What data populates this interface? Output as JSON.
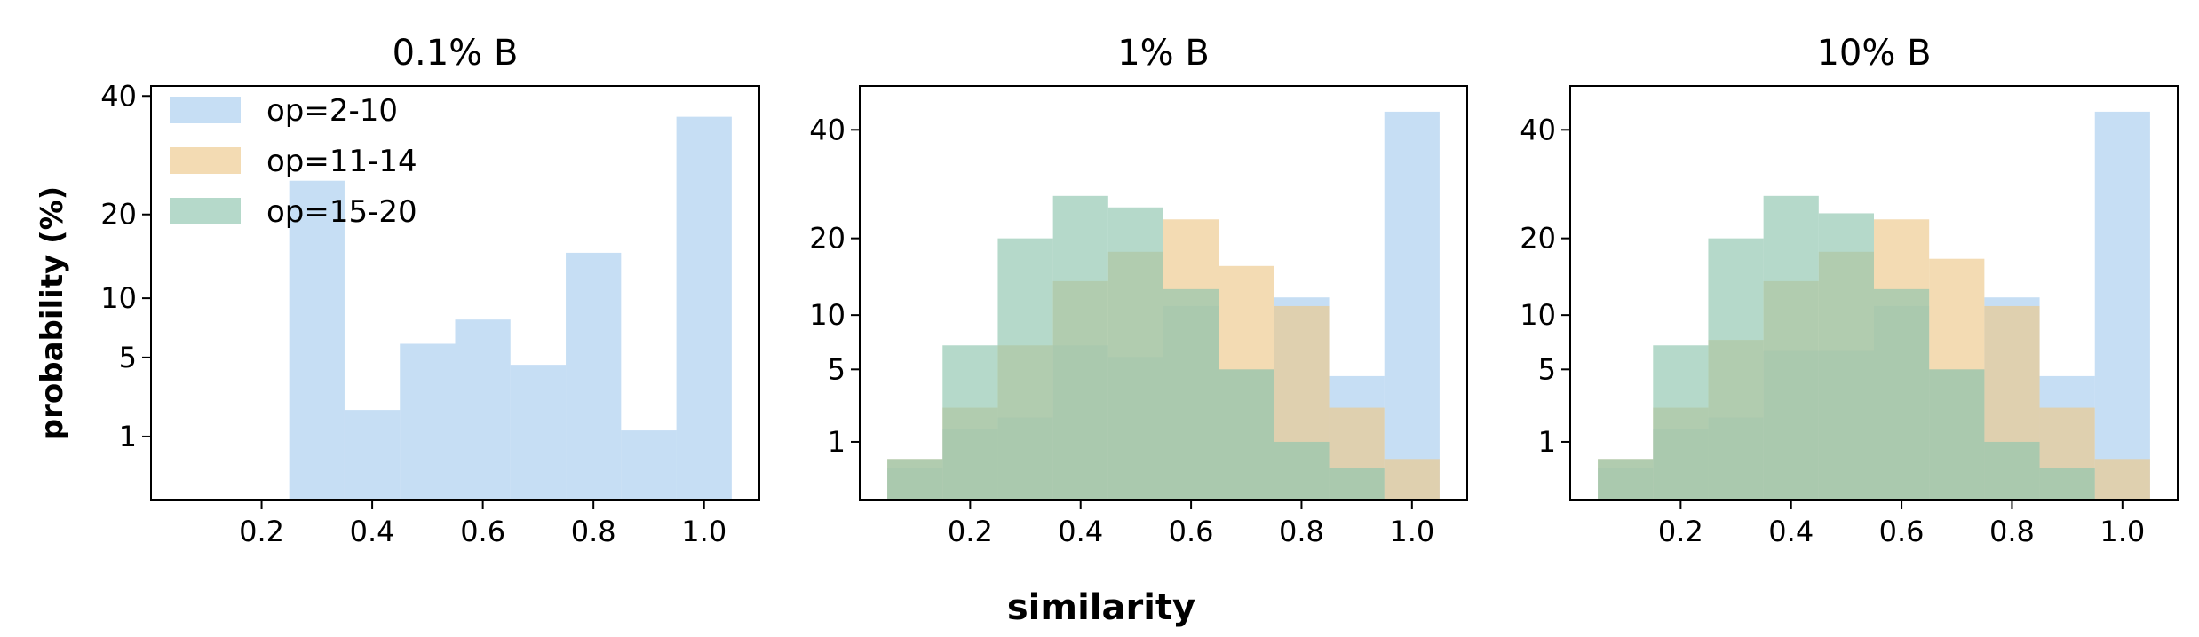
{
  "figure": {
    "ylabel": "probability (%)",
    "xlabel": "similarity",
    "legend": [
      {
        "label": "op=2-10",
        "color": "#a8cdee"
      },
      {
        "label": "op=11-14",
        "color": "#ecc78a"
      },
      {
        "label": "op=15-20",
        "color": "#8ec4ad"
      }
    ]
  },
  "chart_data": [
    {
      "type": "bar",
      "title": "0.1% B",
      "xlabel": "similarity",
      "ylabel": "probability (%)",
      "xlim": [
        0,
        1.1
      ],
      "y_scale": "sqrt",
      "ylim": [
        0,
        42
      ],
      "xticks": [
        "0.2",
        "0.4",
        "0.6",
        "0.8",
        "1.0"
      ],
      "yticks": [
        "1",
        "5",
        "10",
        "20",
        "40"
      ],
      "bin_centers": [
        0.1,
        0.2,
        0.3,
        0.4,
        0.5,
        0.6,
        0.7,
        0.8,
        0.9,
        1.0
      ],
      "bin_width": 0.1,
      "legend_position": "upper-left",
      "series": [
        {
          "name": "op=2-10",
          "color": "#a8cdee",
          "values": [
            0,
            0,
            25,
            2,
            6,
            8,
            4.5,
            15,
            1.2,
            36
          ]
        },
        {
          "name": "op=11-14",
          "color": "#ecc78a",
          "values": [
            0,
            0,
            0,
            0,
            0,
            0,
            0,
            0,
            0,
            0
          ]
        },
        {
          "name": "op=15-20",
          "color": "#8ec4ad",
          "values": [
            0,
            0,
            0,
            0,
            0,
            0,
            0,
            0,
            0,
            0
          ]
        }
      ]
    },
    {
      "type": "bar",
      "title": "1% B",
      "xlabel": "similarity",
      "ylabel": "probability (%)",
      "xlim": [
        0,
        1.1
      ],
      "y_scale": "sqrt",
      "ylim": [
        0,
        50
      ],
      "xticks": [
        "0.2",
        "0.4",
        "0.6",
        "0.8",
        "1.0"
      ],
      "yticks": [
        "1",
        "5",
        "10",
        "20",
        "40"
      ],
      "bin_centers": [
        0.1,
        0.2,
        0.3,
        0.4,
        0.5,
        0.6,
        0.7,
        0.8,
        0.9,
        1.0
      ],
      "bin_width": 0.1,
      "series": [
        {
          "name": "op=2-10",
          "color": "#a8cdee",
          "values": [
            0.3,
            1.5,
            2,
            7,
            6,
            11,
            5,
            12,
            4.5,
            44
          ]
        },
        {
          "name": "op=11-14",
          "color": "#ecc78a",
          "values": [
            0.5,
            2.5,
            7,
            14,
            18,
            23,
            16,
            11,
            2.5,
            0.5
          ]
        },
        {
          "name": "op=15-20",
          "color": "#8ec4ad",
          "values": [
            0.5,
            7,
            20,
            27,
            25,
            13,
            5,
            1,
            0.3,
            0
          ]
        }
      ]
    },
    {
      "type": "bar",
      "title": "10% B",
      "xlabel": "similarity",
      "ylabel": "probability (%)",
      "xlim": [
        0,
        1.1
      ],
      "y_scale": "sqrt",
      "ylim": [
        0,
        50
      ],
      "xticks": [
        "0.2",
        "0.4",
        "0.6",
        "0.8",
        "1.0"
      ],
      "yticks": [
        "1",
        "5",
        "10",
        "20",
        "40"
      ],
      "bin_centers": [
        0.1,
        0.2,
        0.3,
        0.4,
        0.5,
        0.6,
        0.7,
        0.8,
        0.9,
        1.0
      ],
      "bin_width": 0.1,
      "series": [
        {
          "name": "op=2-10",
          "color": "#a8cdee",
          "values": [
            0.3,
            1.5,
            2,
            6.5,
            6.5,
            11,
            5,
            12,
            4.5,
            44
          ]
        },
        {
          "name": "op=11-14",
          "color": "#ecc78a",
          "values": [
            0.5,
            2.5,
            7.5,
            14,
            18,
            23,
            17,
            11,
            2.5,
            0.5
          ]
        },
        {
          "name": "op=15-20",
          "color": "#8ec4ad",
          "values": [
            0.5,
            7,
            20,
            27,
            24,
            13,
            5,
            1,
            0.3,
            0
          ]
        }
      ]
    }
  ]
}
